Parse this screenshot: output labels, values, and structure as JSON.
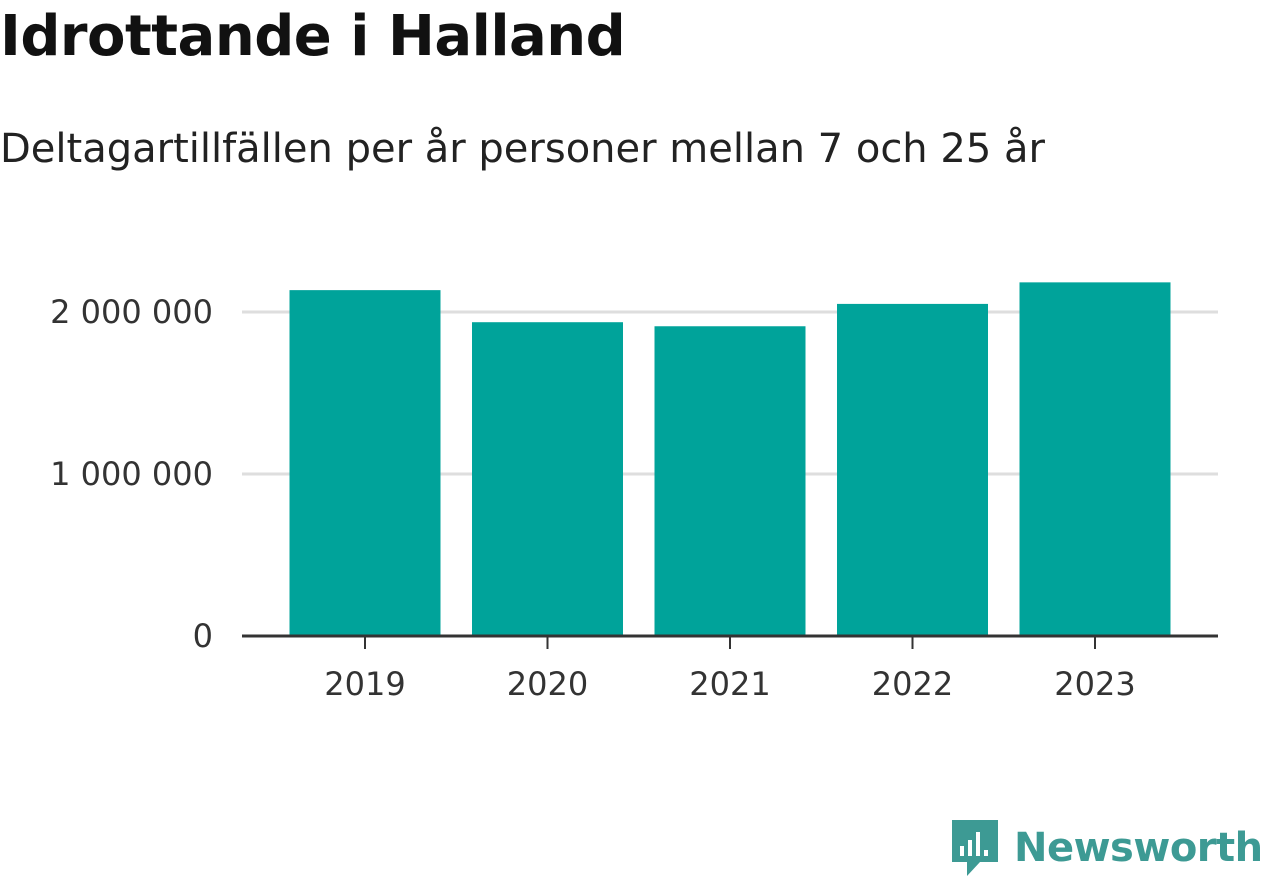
{
  "chart_data": {
    "type": "bar",
    "title": "Idrottande i Halland",
    "subtitle": "Deltagartillfällen per år personer mellan 7 och 25 år",
    "categories": [
      "2019",
      "2020",
      "2021",
      "2022",
      "2023"
    ],
    "values": [
      2135000,
      1937000,
      1912000,
      2050000,
      2183000
    ],
    "yticks": [
      0,
      1000000,
      2000000
    ],
    "ytick_labels": [
      "0",
      "1 000 000",
      "2 000 000"
    ],
    "ylim": [
      0,
      2200000
    ],
    "grid": "horizontal",
    "bar_color": "#00a39a",
    "xlabel": "",
    "ylabel": ""
  },
  "brand": {
    "name": "Newsworthy",
    "icon": "newsworthy-logo-icon",
    "color": "#3d9a94"
  }
}
